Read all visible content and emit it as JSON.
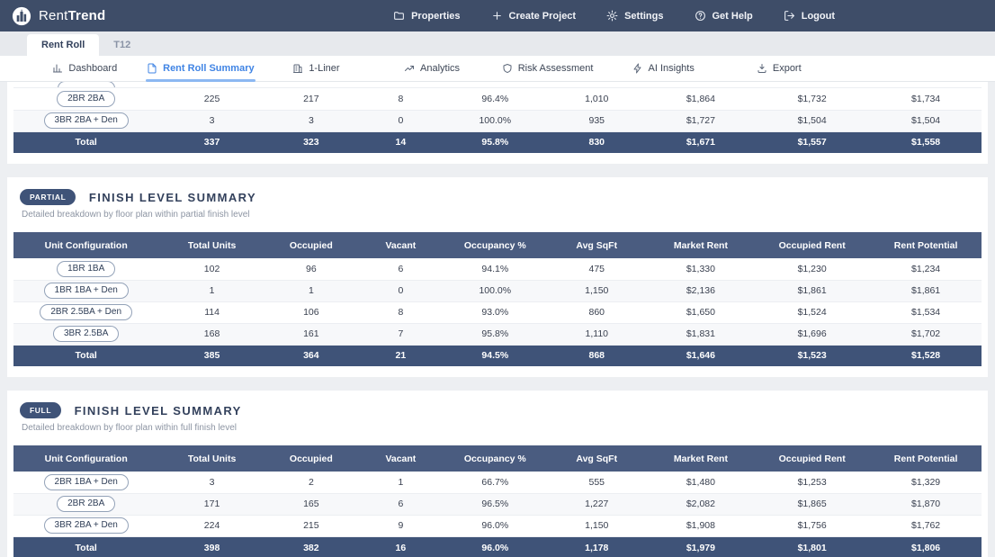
{
  "brand": {
    "rent": "Rent",
    "trend": "Trend",
    "logo_icon": "buildings-logo-icon"
  },
  "header": {
    "items": [
      {
        "label": "Properties",
        "icon": "folder-icon"
      },
      {
        "label": "Create Project",
        "icon": "plus-icon"
      },
      {
        "label": "Settings",
        "icon": "gear-icon"
      },
      {
        "label": "Get Help",
        "icon": "help-circle-icon"
      },
      {
        "label": "Logout",
        "icon": "logout-icon"
      }
    ]
  },
  "tabs": [
    {
      "label": "Rent Roll",
      "active": true
    },
    {
      "label": "T12",
      "active": false
    }
  ],
  "subnav": {
    "items": [
      {
        "label": "Dashboard",
        "icon": "bar-chart-icon",
        "active": false
      },
      {
        "label": "Rent Roll Summary",
        "icon": "document-icon",
        "active": true
      },
      {
        "label": "1-Liner",
        "icon": "building-icon",
        "active": false
      },
      {
        "label": "Analytics",
        "icon": "trend-up-icon",
        "active": false
      },
      {
        "label": "Risk Assessment",
        "icon": "shield-icon",
        "active": false
      },
      {
        "label": "AI Insights",
        "icon": "zap-icon",
        "active": false
      },
      {
        "label": "Export",
        "icon": "download-icon",
        "active": false
      }
    ]
  },
  "columns": [
    "Unit Configuration",
    "Total Units",
    "Occupied",
    "Vacant",
    "Occupancy %",
    "Avg SqFt",
    "Market Rent",
    "Occupied Rent",
    "Rent Potential"
  ],
  "sections": [
    {
      "id": "top",
      "clipped": true,
      "show_header": false,
      "badge": null,
      "title": null,
      "subtitle": null,
      "rows": [
        {
          "config": "2BR 2BA",
          "values": [
            "225",
            "217",
            "8",
            "96.4%",
            "1,010",
            "$1,864",
            "$1,732",
            "$1,734"
          ]
        },
        {
          "config": "3BR 2BA + Den",
          "values": [
            "3",
            "3",
            "0",
            "100.0%",
            "935",
            "$1,727",
            "$1,504",
            "$1,504"
          ]
        }
      ],
      "total": {
        "label": "Total",
        "values": [
          "337",
          "323",
          "14",
          "95.8%",
          "830",
          "$1,671",
          "$1,557",
          "$1,558"
        ]
      }
    },
    {
      "id": "partial",
      "clipped": false,
      "show_header": true,
      "badge": "PARTIAL",
      "title": "FINISH LEVEL SUMMARY",
      "subtitle": "Detailed breakdown by floor plan within partial finish level",
      "rows": [
        {
          "config": "1BR 1BA",
          "values": [
            "102",
            "96",
            "6",
            "94.1%",
            "475",
            "$1,330",
            "$1,230",
            "$1,234"
          ]
        },
        {
          "config": "1BR 1BA + Den",
          "values": [
            "1",
            "1",
            "0",
            "100.0%",
            "1,150",
            "$2,136",
            "$1,861",
            "$1,861"
          ]
        },
        {
          "config": "2BR 2.5BA + Den",
          "values": [
            "114",
            "106",
            "8",
            "93.0%",
            "860",
            "$1,650",
            "$1,524",
            "$1,534"
          ]
        },
        {
          "config": "3BR 2.5BA",
          "values": [
            "168",
            "161",
            "7",
            "95.8%",
            "1,110",
            "$1,831",
            "$1,696",
            "$1,702"
          ]
        }
      ],
      "total": {
        "label": "Total",
        "values": [
          "385",
          "364",
          "21",
          "94.5%",
          "868",
          "$1,646",
          "$1,523",
          "$1,528"
        ]
      }
    },
    {
      "id": "full",
      "clipped": false,
      "show_header": true,
      "badge": "FULL",
      "title": "FINISH LEVEL SUMMARY",
      "subtitle": "Detailed breakdown by floor plan within full finish level",
      "rows": [
        {
          "config": "2BR 1BA + Den",
          "values": [
            "3",
            "2",
            "1",
            "66.7%",
            "555",
            "$1,480",
            "$1,253",
            "$1,329"
          ]
        },
        {
          "config": "2BR 2BA",
          "values": [
            "171",
            "165",
            "6",
            "96.5%",
            "1,227",
            "$2,082",
            "$1,865",
            "$1,870"
          ]
        },
        {
          "config": "3BR 2BA + Den",
          "values": [
            "224",
            "215",
            "9",
            "96.0%",
            "1,150",
            "$1,908",
            "$1,756",
            "$1,762"
          ]
        }
      ],
      "total": {
        "label": "Total",
        "values": [
          "398",
          "382",
          "16",
          "96.0%",
          "1,178",
          "$1,979",
          "$1,801",
          "$1,806"
        ]
      }
    }
  ],
  "colors": {
    "header_bg": "#3e4d68",
    "table_header_bg": "#4a5c80",
    "total_row_bg": "#3f5378",
    "active_blue": "#4084e4",
    "active_underline": "#8cb8f2",
    "page_bg": "#edeff2"
  }
}
